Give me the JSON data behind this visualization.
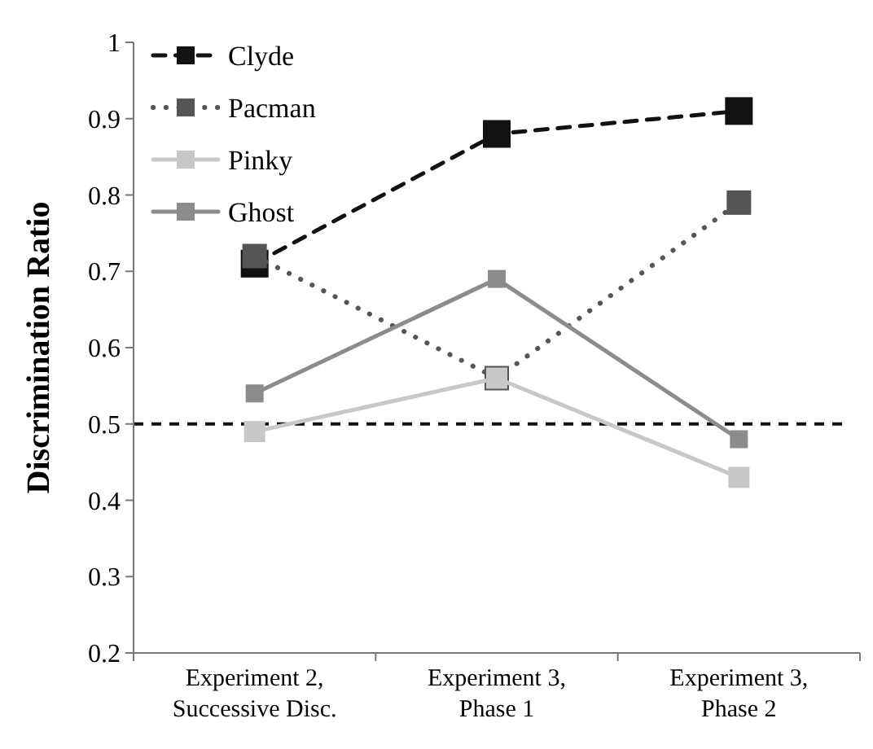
{
  "chart_data": {
    "type": "line",
    "ylabel": "Discrimination Ratio",
    "categories": [
      "Experiment 2,\nSuccessive Disc.",
      "Experiment 3,\nPhase 1",
      "Experiment 3,\nPhase 2"
    ],
    "series": [
      {
        "name": "Clyde",
        "color": "#111111",
        "values": [
          0.71,
          0.88,
          0.91
        ],
        "line_style": "dashed",
        "marker": "square"
      },
      {
        "name": "Pacman",
        "color": "#555555",
        "values": [
          0.72,
          0.56,
          0.79
        ],
        "line_style": "dotted",
        "marker": "square"
      },
      {
        "name": "Pinky",
        "color": "#c8c8c8",
        "values": [
          0.49,
          0.56,
          0.43
        ],
        "line_style": "solid",
        "marker": "square"
      },
      {
        "name": "Ghost",
        "color": "#8c8c8c",
        "values": [
          0.54,
          0.69,
          0.48
        ],
        "line_style": "solid",
        "marker": "square"
      }
    ],
    "ylim": [
      0.2,
      1
    ],
    "yticks": [
      0.2,
      0.3,
      0.4,
      0.5,
      0.6,
      0.7,
      0.8,
      0.9,
      1
    ],
    "ref_lines": [
      {
        "axis": "y",
        "value": 0.5,
        "color": "#111111",
        "line_style": "dashed"
      }
    ],
    "legend": "top left"
  }
}
